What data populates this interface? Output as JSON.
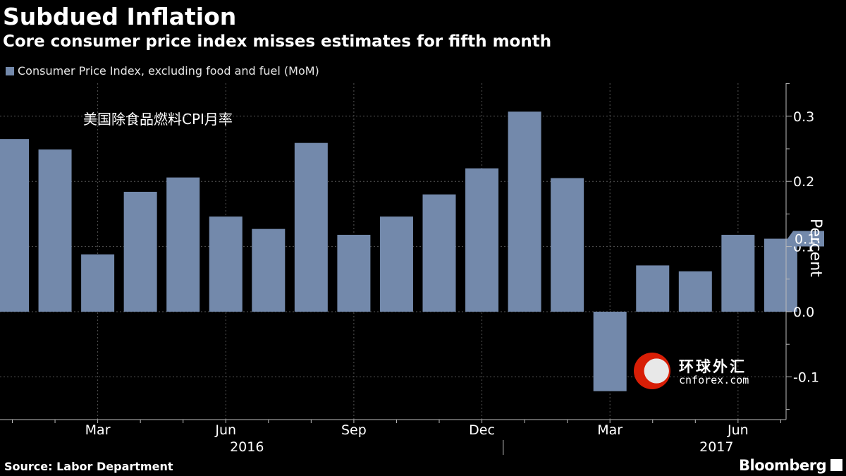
{
  "header": {
    "title": "Subdued Inflation",
    "subtitle": "Core consumer price index misses estimates for fifth month"
  },
  "legend": {
    "label": "Consumer Price Index, excluding food and fuel (MoM)",
    "color": "#7389ab"
  },
  "annotation": "美国除食品燃料CPI月率",
  "footer": {
    "source": "Source: Labor Department",
    "brand": "Bloomberg"
  },
  "watermark": {
    "name": "环球外汇",
    "site": "cnforex.com"
  },
  "colors": {
    "bar": "#7389ab",
    "background": "#000000",
    "grid": "#555555",
    "text": "#ffffff"
  },
  "chart_data": {
    "type": "bar",
    "ylabel": "Percent",
    "ylim": [
      -0.155,
      0.35
    ],
    "yticks": [
      -0.1,
      0.0,
      0.1,
      0.2,
      0.3
    ],
    "ytick_labels": [
      "-0.1",
      "0.0",
      "0.1",
      "0.2",
      "0.3"
    ],
    "grid": true,
    "axis_side": "right",
    "legend_position": "top-left",
    "categories": [
      "2016-01",
      "2016-02",
      "2016-03",
      "2016-04",
      "2016-05",
      "2016-06",
      "2016-07",
      "2016-08",
      "2016-09",
      "2016-10",
      "2016-11",
      "2016-12",
      "2017-01",
      "2017-02",
      "2017-03",
      "2017-04",
      "2017-05",
      "2017-06",
      "2017-07"
    ],
    "values": [
      0.265,
      0.249,
      0.088,
      0.184,
      0.206,
      0.146,
      0.127,
      0.259,
      0.118,
      0.146,
      0.18,
      0.22,
      0.307,
      0.205,
      -0.122,
      0.071,
      0.062,
      0.118,
      0.112
    ],
    "month_labels": [
      {
        "index": 2,
        "label": "Mar"
      },
      {
        "index": 5,
        "label": "Jun"
      },
      {
        "index": 8,
        "label": "Sep"
      },
      {
        "index": 11,
        "label": "Dec"
      },
      {
        "index": 14,
        "label": "Mar"
      },
      {
        "index": 17,
        "label": "Jun"
      }
    ],
    "year_labels": [
      {
        "label": "2016",
        "center": 5
      },
      {
        "label": "2017",
        "center": 16
      }
    ],
    "last_value_label": "0.1"
  }
}
